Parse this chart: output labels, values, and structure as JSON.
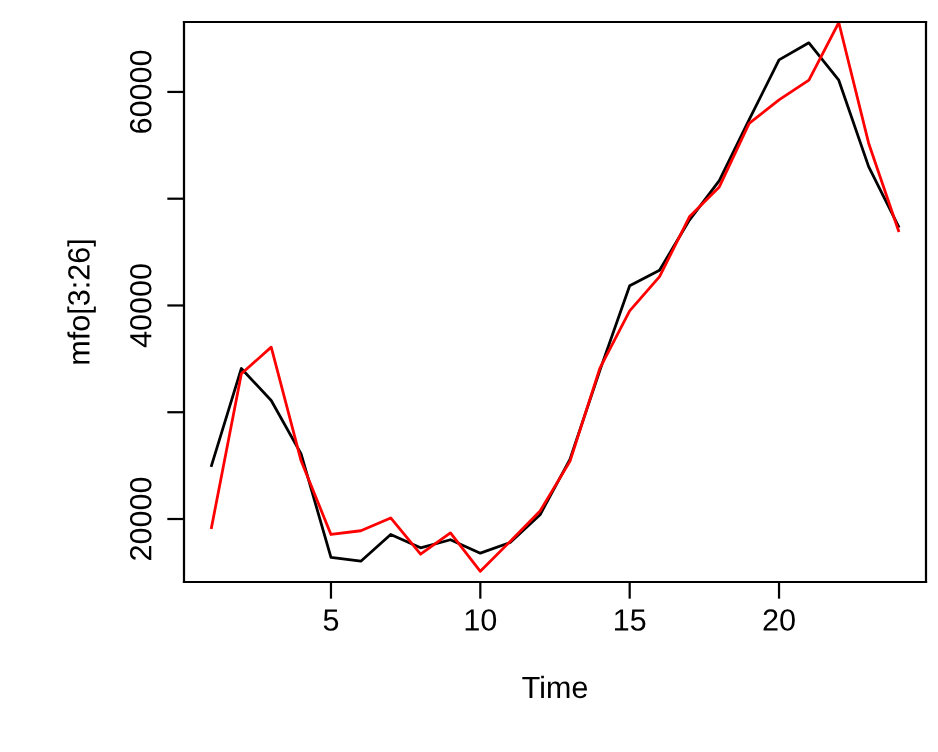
{
  "chart_data": {
    "type": "line",
    "xlabel": "Time",
    "ylabel": "mfo[3:26]",
    "x": [
      1,
      2,
      3,
      4,
      5,
      6,
      7,
      8,
      9,
      10,
      11,
      12,
      13,
      14,
      15,
      16,
      17,
      18,
      19,
      20,
      21,
      22,
      23,
      24
    ],
    "series": [
      {
        "color": "#000000",
        "values": [
          25000,
          34100,
          31100,
          26100,
          16400,
          16050,
          18550,
          17300,
          18060,
          16800,
          17800,
          20400,
          25580,
          33900,
          41850,
          43300,
          48000,
          51700,
          57400,
          63000,
          64600,
          61100,
          53000,
          47400
        ]
      },
      {
        "color": "#ff0000",
        "values": [
          19200,
          33600,
          36100,
          25450,
          18550,
          18900,
          20100,
          16700,
          18700,
          15100,
          17900,
          20750,
          25400,
          34100,
          39500,
          42700,
          48300,
          51100,
          57050,
          59250,
          61100,
          66500,
          55200,
          47000
        ]
      }
    ],
    "xlim": [
      0.08,
      24.92
    ],
    "ylim": [
      14100,
      66550
    ],
    "xticks": [
      5,
      10,
      15,
      20
    ],
    "yticks": [
      20000,
      {
        "value": 30000,
        "label": null
      },
      40000,
      {
        "value": 50000,
        "label": null
      },
      60000
    ],
    "grid": false,
    "legend": false,
    "marker": "none",
    "line_style": "solid"
  }
}
